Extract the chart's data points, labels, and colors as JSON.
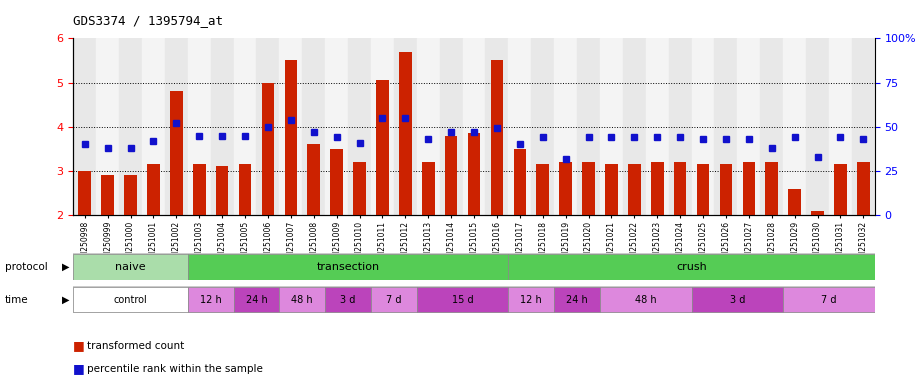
{
  "title": "GDS3374 / 1395794_at",
  "samples": [
    "GSM250998",
    "GSM250999",
    "GSM251000",
    "GSM251001",
    "GSM251002",
    "GSM251003",
    "GSM251004",
    "GSM251005",
    "GSM251006",
    "GSM251007",
    "GSM251008",
    "GSM251009",
    "GSM251010",
    "GSM251011",
    "GSM251012",
    "GSM251013",
    "GSM251014",
    "GSM251015",
    "GSM251016",
    "GSM251017",
    "GSM251018",
    "GSM251019",
    "GSM251020",
    "GSM251021",
    "GSM251022",
    "GSM251023",
    "GSM251024",
    "GSM251025",
    "GSM251026",
    "GSM251027",
    "GSM251028",
    "GSM251029",
    "GSM251030",
    "GSM251031",
    "GSM251032"
  ],
  "bar_values": [
    3.0,
    2.9,
    2.9,
    3.15,
    4.8,
    3.15,
    3.1,
    3.15,
    5.0,
    5.5,
    3.6,
    3.5,
    3.2,
    5.05,
    5.7,
    3.2,
    3.8,
    3.85,
    5.5,
    3.5,
    3.15,
    3.2,
    3.2,
    3.15,
    3.15,
    3.2,
    3.2,
    3.15,
    3.15,
    3.2,
    3.2,
    2.6,
    2.1,
    3.15,
    3.2
  ],
  "dot_values_pct": [
    40,
    38,
    38,
    42,
    52,
    45,
    45,
    45,
    50,
    54,
    47,
    44,
    41,
    55,
    55,
    43,
    47,
    47,
    49,
    40,
    44,
    32,
    44,
    44,
    44,
    44,
    44,
    43,
    43,
    43,
    38,
    44,
    33,
    44,
    43
  ],
  "ylim_left": [
    2,
    6
  ],
  "ylim_right": [
    0,
    100
  ],
  "yticks_left": [
    2,
    3,
    4,
    5,
    6
  ],
  "yticks_right": [
    0,
    25,
    50,
    75,
    100
  ],
  "hgrid_lines": [
    3,
    4,
    5
  ],
  "bar_color": "#cc2200",
  "dot_color": "#1111cc",
  "plot_bg": "#ffffff",
  "protocol_groups": [
    {
      "label": "naive",
      "start": 0,
      "end": 4,
      "color": "#aaddaa"
    },
    {
      "label": "transection",
      "start": 5,
      "end": 18,
      "color": "#55cc55"
    },
    {
      "label": "crush",
      "start": 19,
      "end": 34,
      "color": "#55cc55"
    }
  ],
  "time_groups": [
    {
      "label": "control",
      "start": 0,
      "end": 4,
      "color": "#ffffff"
    },
    {
      "label": "12 h",
      "start": 5,
      "end": 6,
      "color": "#dd88dd"
    },
    {
      "label": "24 h",
      "start": 7,
      "end": 8,
      "color": "#bb44bb"
    },
    {
      "label": "48 h",
      "start": 9,
      "end": 10,
      "color": "#dd88dd"
    },
    {
      "label": "3 d",
      "start": 11,
      "end": 12,
      "color": "#bb44bb"
    },
    {
      "label": "7 d",
      "start": 13,
      "end": 14,
      "color": "#dd88dd"
    },
    {
      "label": "15 d",
      "start": 15,
      "end": 18,
      "color": "#bb44bb"
    },
    {
      "label": "12 h",
      "start": 19,
      "end": 20,
      "color": "#dd88dd"
    },
    {
      "label": "24 h",
      "start": 21,
      "end": 22,
      "color": "#bb44bb"
    },
    {
      "label": "48 h",
      "start": 23,
      "end": 26,
      "color": "#dd88dd"
    },
    {
      "label": "3 d",
      "start": 27,
      "end": 30,
      "color": "#bb44bb"
    },
    {
      "label": "7 d",
      "start": 31,
      "end": 34,
      "color": "#dd88dd"
    }
  ],
  "legend_items": [
    {
      "label": "transformed count",
      "color": "#cc2200"
    },
    {
      "label": "percentile rank within the sample",
      "color": "#1111cc"
    }
  ]
}
